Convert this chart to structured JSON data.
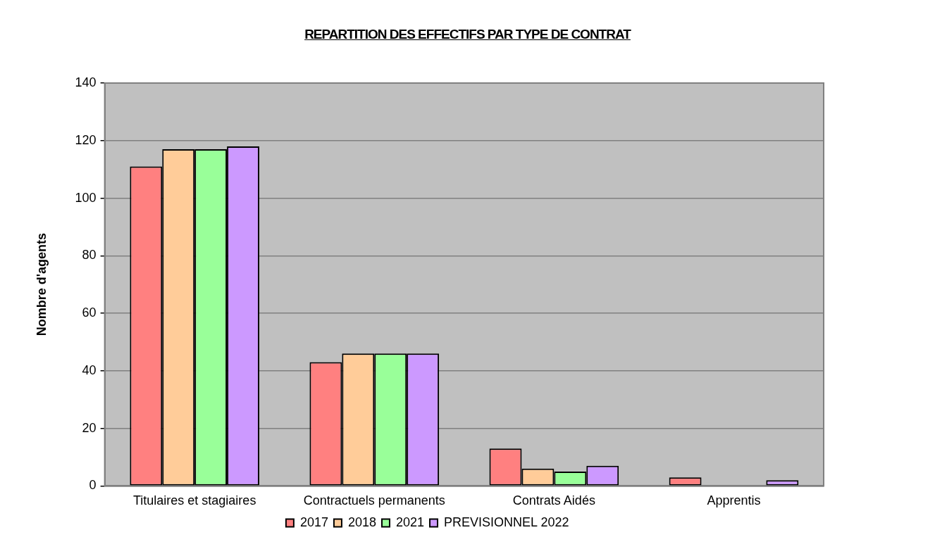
{
  "chart_data": {
    "type": "bar",
    "title": "REPARTITION DES EFFECTIFS PAR TYPE DE CONTRAT",
    "ylabel": "Nombre d'agents",
    "categories": [
      "Titulaires et stagiaires",
      "Contractuels permanents",
      "Contrats Aidés",
      "Apprentis"
    ],
    "series": [
      {
        "name": "2017",
        "color": "#ff8080",
        "values": [
          111,
          43,
          13,
          3
        ]
      },
      {
        "name": "2018",
        "color": "#ffcc99",
        "values": [
          117,
          46,
          6,
          0
        ]
      },
      {
        "name": "2021",
        "color": "#99ff99",
        "values": [
          117,
          46,
          5,
          0
        ]
      },
      {
        "name": "PREVISIONNEL 2022",
        "color": "#cc99ff",
        "values": [
          118,
          46,
          7,
          2
        ]
      }
    ],
    "ylim": [
      0,
      140
    ],
    "yticks": [
      0,
      20,
      40,
      60,
      80,
      100,
      120,
      140
    ],
    "grid": "y",
    "legend": "bottom"
  }
}
